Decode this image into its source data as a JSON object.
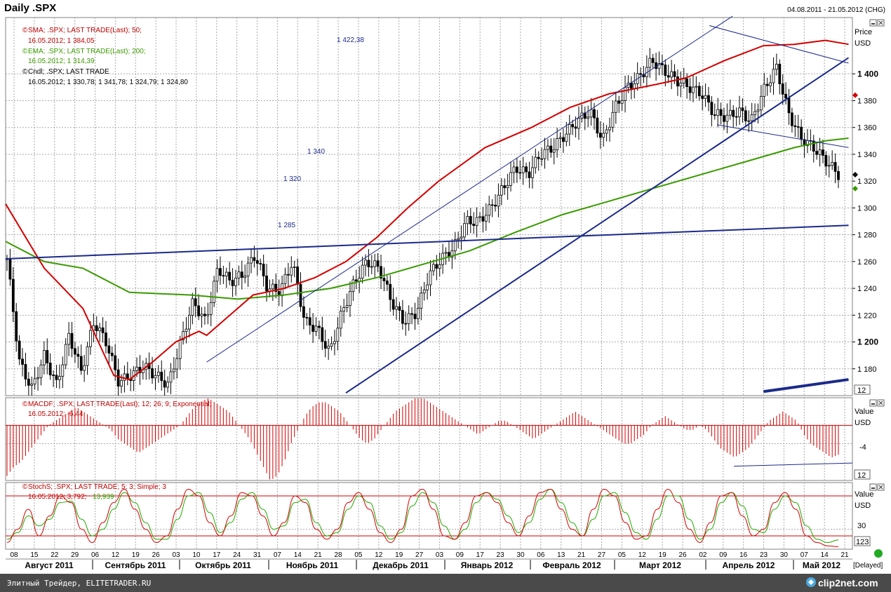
{
  "header": {
    "title": "Daily .SPX",
    "date_range": "04.08.2011 - 21.05.2012 (CHG)"
  },
  "price_panel": {
    "axis_title": "Price",
    "axis_currency": "USD",
    "legend": [
      {
        "line1": "SMA; .SPX; LAST TRADE(Last); 50;",
        "line2": "16.05.2012; 1 384,05",
        "color": "#c00000"
      },
      {
        "line1": "EMA; .SPX; LAST TRADE(Last); 200;",
        "line2": "16.05.2012; 1 314,39",
        "color": "#3a9a00"
      },
      {
        "line1": "Cndl; .SPX; LAST TRADE",
        "line2": "16.05.2012; 1 330,78; 1 341,78; 1 324,79; 1 324,80",
        "color": "#000000"
      }
    ],
    "annotations": [
      "1 422,38",
      "1 340",
      "1 320",
      "1 285"
    ],
    "corner_label": "12"
  },
  "macd_panel": {
    "legend": {
      "line1": "MACDF; .SPX; LAST TRADE(Last); 12; 26; 9; Exponential;",
      "line2": "16.05.2012; -6,44"
    },
    "axis_title": "Value",
    "axis_currency": "USD",
    "tick_label": "-4",
    "corner_label": "12"
  },
  "stoch_panel": {
    "legend": {
      "line1": "StochS; .SPX; LAST TRADE; 5; 3; Simple; 3",
      "value_red": "16.05.2012; 3,792;",
      "value_green": "13,939"
    },
    "axis_title": "Value",
    "axis_currency": "USD",
    "tick_label": "30",
    "corner_label": "123"
  },
  "x_axis": {
    "days": [
      "08",
      "15",
      "22",
      "29",
      "06",
      "12",
      "19",
      "26",
      "03",
      "10",
      "17",
      "24",
      "31",
      "07",
      "14",
      "21",
      "28",
      "05",
      "12",
      "19",
      "27",
      "03",
      "09",
      "17",
      "23",
      "30",
      "06",
      "13",
      "21",
      "27",
      "05",
      "12",
      "19",
      "26",
      "02",
      "09",
      "16",
      "23",
      "30",
      "07",
      "14",
      "21"
    ],
    "months": [
      "Август 2011",
      "Сентябрь 2011",
      "Октябрь 2011",
      "Ноябрь 2011",
      "Декабрь 2011",
      "Январь 2012",
      "Февраль 2012",
      "Март 2012",
      "Апрель 2012",
      "Май 2012"
    ],
    "delayed_label": "[Delayed]"
  },
  "footer": {
    "left_text": "Элитный Трейдер, ELITETRADER.RU",
    "brand": "clip2net.com"
  },
  "chart_data": {
    "type": "candlestick",
    "title": "Daily .SPX",
    "ylim": [
      1160,
      1442
    ],
    "ytick_labels": [
      "1 180",
      "1 200",
      "1 220",
      "1 240",
      "1 260",
      "1 280",
      "1 300",
      "1 320",
      "1 340",
      "1 360",
      "1 380",
      "1 400"
    ],
    "ytick_values": [
      1180,
      1200,
      1220,
      1240,
      1260,
      1280,
      1300,
      1320,
      1340,
      1360,
      1380,
      1400
    ],
    "ytick_bold": [
      1200,
      1400
    ],
    "series": [
      {
        "name": "SMA; .SPX; LAST TRADE(Last); 50;",
        "color": "#d40000",
        "last_value": 1384.05
      },
      {
        "name": "EMA; .SPX; LAST TRADE(Last); 200;",
        "color": "#3a9a00",
        "last_value": 1314.39
      },
      {
        "name": "Cndl; .SPX; LAST TRADE",
        "color": "#000000",
        "last_ohlc": [
          1330.78,
          1341.78,
          1324.79,
          1324.8
        ]
      }
    ],
    "close_path": [
      [
        0,
        1262
      ],
      [
        4,
        1185
      ],
      [
        8,
        1165
      ],
      [
        12,
        1190
      ],
      [
        16,
        1168
      ],
      [
        20,
        1205
      ],
      [
        24,
        1178
      ],
      [
        28,
        1215
      ],
      [
        32,
        1200
      ],
      [
        36,
        1170
      ],
      [
        40,
        1175
      ],
      [
        44,
        1182
      ],
      [
        48,
        1175
      ],
      [
        52,
        1168
      ],
      [
        56,
        1200
      ],
      [
        60,
        1230
      ],
      [
        64,
        1215
      ],
      [
        68,
        1255
      ],
      [
        72,
        1245
      ],
      [
        76,
        1250
      ],
      [
        80,
        1265
      ],
      [
        84,
        1240
      ],
      [
        88,
        1238
      ],
      [
        92,
        1260
      ],
      [
        96,
        1215
      ],
      [
        100,
        1210
      ],
      [
        104,
        1192
      ],
      [
        108,
        1222
      ],
      [
        112,
        1245
      ],
      [
        116,
        1260
      ],
      [
        120,
        1255
      ],
      [
        124,
        1230
      ],
      [
        128,
        1215
      ],
      [
        132,
        1222
      ],
      [
        136,
        1250
      ],
      [
        140,
        1262
      ],
      [
        144,
        1270
      ],
      [
        148,
        1290
      ],
      [
        152,
        1290
      ],
      [
        156,
        1300
      ],
      [
        160,
        1315
      ],
      [
        164,
        1330
      ],
      [
        168,
        1325
      ],
      [
        172,
        1340
      ],
      [
        176,
        1345
      ],
      [
        180,
        1355
      ],
      [
        184,
        1365
      ],
      [
        188,
        1372
      ],
      [
        192,
        1350
      ],
      [
        196,
        1375
      ],
      [
        200,
        1390
      ],
      [
        204,
        1398
      ],
      [
        208,
        1410
      ],
      [
        212,
        1402
      ],
      [
        216,
        1395
      ],
      [
        220,
        1390
      ],
      [
        224,
        1385
      ],
      [
        228,
        1370
      ],
      [
        232,
        1368
      ],
      [
        236,
        1372
      ],
      [
        240,
        1365
      ],
      [
        244,
        1388
      ],
      [
        248,
        1405
      ],
      [
        252,
        1370
      ],
      [
        256,
        1352
      ],
      [
        260,
        1345
      ],
      [
        264,
        1335
      ],
      [
        268,
        1325
      ]
    ],
    "sma50_path": [
      [
        0,
        1303
      ],
      [
        10,
        1255
      ],
      [
        20,
        1225
      ],
      [
        28,
        1175
      ],
      [
        32,
        1172
      ],
      [
        38,
        1185
      ],
      [
        44,
        1200
      ],
      [
        50,
        1208
      ],
      [
        52,
        1205
      ],
      [
        58,
        1220
      ],
      [
        64,
        1235
      ],
      [
        72,
        1240
      ],
      [
        80,
        1248
      ],
      [
        88,
        1260
      ],
      [
        96,
        1278
      ],
      [
        104,
        1300
      ],
      [
        112,
        1320
      ],
      [
        124,
        1345
      ],
      [
        136,
        1360
      ],
      [
        146,
        1375
      ],
      [
        156,
        1385
      ],
      [
        168,
        1392
      ],
      [
        176,
        1397
      ],
      [
        186,
        1410
      ],
      [
        196,
        1421
      ],
      [
        204,
        1422
      ],
      [
        212,
        1425
      ],
      [
        218,
        1422
      ]
    ],
    "ema200_path": [
      [
        0,
        1275
      ],
      [
        10,
        1260
      ],
      [
        20,
        1255
      ],
      [
        32,
        1237
      ],
      [
        40,
        1236
      ],
      [
        48,
        1235
      ],
      [
        60,
        1232
      ],
      [
        72,
        1235
      ],
      [
        84,
        1240
      ],
      [
        96,
        1248
      ],
      [
        108,
        1258
      ],
      [
        120,
        1268
      ],
      [
        132,
        1282
      ],
      [
        144,
        1295
      ],
      [
        156,
        1305
      ],
      [
        168,
        1315
      ],
      [
        180,
        1325
      ],
      [
        192,
        1335
      ],
      [
        204,
        1345
      ],
      [
        212,
        1350
      ],
      [
        218,
        1352
      ]
    ],
    "trendlines": [
      {
        "from": [
          0,
          1262
        ],
        "to": [
          218,
          1287
        ],
        "color": "#1b2a8a",
        "width": 2
      },
      {
        "from": [
          88,
          1162
        ],
        "to": [
          218,
          1412
        ],
        "color": "#1b2a8a",
        "width": 2
      },
      {
        "from": [
          52,
          1185
        ],
        "to": [
          188,
          1443
        ],
        "color": "#1b2a8a",
        "width": 1
      },
      {
        "from": [
          182,
          1436
        ],
        "to": [
          218,
          1408
        ],
        "color": "#1b2a8a",
        "width": 1
      },
      {
        "from": [
          184,
          1362
        ],
        "to": [
          218,
          1345
        ],
        "color": "#1b2a8a",
        "width": 1
      },
      {
        "from": [
          196,
          1163
        ],
        "to": [
          218,
          1172
        ],
        "color": "#1b2a8a",
        "width": 4
      }
    ],
    "price_markers": [
      {
        "value": 1324.8,
        "color": "#000000"
      },
      {
        "value": 1384.05,
        "color": "#d40000"
      },
      {
        "value": 1314.39,
        "color": "#3a9a00"
      }
    ],
    "macd": {
      "ylim": [
        -12,
        6
      ],
      "zero": 0,
      "values": [
        -11,
        -9,
        -8,
        -6,
        -4,
        -2,
        0,
        1,
        2,
        3,
        4,
        3,
        2,
        1,
        0,
        -1,
        -3,
        -4,
        -5,
        -6,
        -5,
        -4,
        -3,
        -2,
        -1,
        0,
        2,
        4,
        5,
        6,
        5,
        4,
        3,
        1,
        -1,
        -3,
        -6,
        -9,
        -12,
        -11,
        -8,
        -4,
        -1,
        2,
        4,
        5,
        5,
        4,
        3,
        1,
        -1,
        -3,
        -4,
        -3,
        -1,
        1,
        3,
        4,
        5,
        6,
        6,
        5,
        4,
        3,
        2,
        1,
        0,
        -1,
        -2,
        -1,
        0,
        1,
        1,
        0,
        -1,
        -2,
        -3,
        -2,
        -1,
        0,
        1,
        2,
        3,
        2,
        1,
        0,
        -1,
        -2,
        -3,
        -4,
        -4,
        -3,
        -2,
        0,
        1,
        2,
        1,
        0,
        -1,
        -1,
        0,
        -1,
        -3,
        -5,
        -6,
        -7,
        -6,
        -5,
        -3,
        -1,
        1,
        2,
        3,
        2,
        1,
        -2,
        -4,
        -5,
        -6,
        -7,
        -6.44
      ],
      "trendline": {
        "from": [
          0.86,
          -8.9
        ],
        "to": [
          1.0,
          -8.2
        ]
      }
    },
    "stoch": {
      "ylim": [
        0,
        100
      ],
      "levels": [
        20,
        80
      ],
      "k_values": [
        10,
        30,
        60,
        20,
        50,
        80,
        70,
        30,
        10,
        40,
        70,
        90,
        60,
        30,
        10,
        20,
        60,
        90,
        80,
        40,
        20,
        50,
        85,
        80,
        50,
        20,
        40,
        80,
        70,
        30,
        15,
        30,
        70,
        85,
        60,
        25,
        10,
        30,
        80,
        90,
        60,
        20,
        15,
        40,
        80,
        85,
        70,
        40,
        20,
        50,
        85,
        90,
        60,
        30,
        20,
        60,
        90,
        80,
        40,
        15,
        20,
        60,
        90,
        70,
        30,
        10,
        40,
        80,
        85,
        50,
        20,
        30,
        70,
        85,
        60,
        20,
        10,
        5,
        3.792
      ],
      "d_values": [
        15,
        25,
        50,
        35,
        45,
        70,
        72,
        45,
        20,
        30,
        60,
        85,
        70,
        40,
        15,
        15,
        45,
        80,
        85,
        55,
        25,
        40,
        75,
        85,
        60,
        30,
        35,
        70,
        75,
        40,
        20,
        25,
        60,
        80,
        70,
        35,
        15,
        25,
        65,
        85,
        70,
        35,
        15,
        30,
        70,
        85,
        75,
        50,
        25,
        40,
        75,
        90,
        70,
        40,
        20,
        45,
        80,
        85,
        55,
        25,
        15,
        45,
        80,
        80,
        45,
        15,
        30,
        70,
        85,
        65,
        30,
        25,
        60,
        80,
        70,
        35,
        15,
        10,
        13.939
      ]
    }
  }
}
